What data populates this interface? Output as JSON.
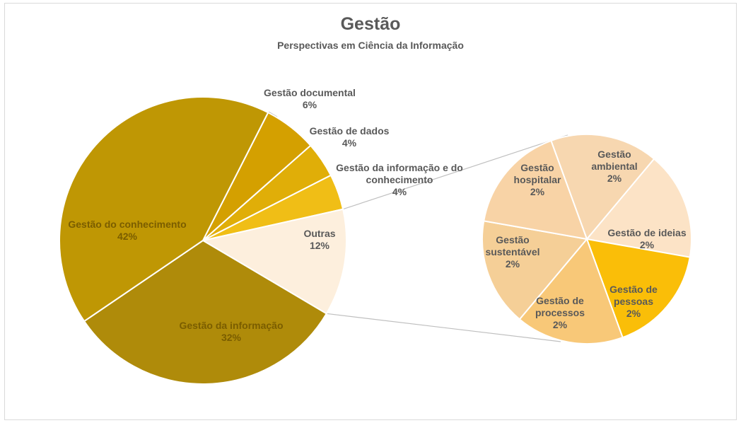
{
  "chart_data": {
    "type": "pie",
    "title": "Gestão",
    "subtitle": "Perspectivas em Ciência da Informação",
    "main_pie": [
      {
        "label": "Gestão documental",
        "value": 6,
        "display": "6%",
        "color": "#D4A000"
      },
      {
        "label": "Gestão de dados",
        "value": 4,
        "display": "4%",
        "color": "#E0AE08"
      },
      {
        "label": "Gestão da informação e do conhecimento",
        "value": 4,
        "display": "4%",
        "color": "#F0BE16"
      },
      {
        "label": "Outras",
        "value": 12,
        "display": "12%",
        "color": "#FDEFDD"
      },
      {
        "label": "Gestão da informação",
        "value": 32,
        "display": "32%",
        "color": "#AF8B0A"
      },
      {
        "label": "Gestão do conhecimento",
        "value": 42,
        "display": "42%",
        "color": "#BF9704"
      }
    ],
    "secondary_pie": [
      {
        "label": "Gestão ambiental",
        "value": 2,
        "display": "2%",
        "color": "#F7D7B0"
      },
      {
        "label": "Gestão de ideias",
        "value": 2,
        "display": "2%",
        "color": "#FCE3C6"
      },
      {
        "label": "Gestão de pessoas",
        "value": 2,
        "display": "2%",
        "color": "#FABE08"
      },
      {
        "label": "Gestão de processos",
        "value": 2,
        "display": "2%",
        "color": "#F8C878"
      },
      {
        "label": "Gestão sustentável",
        "value": 2,
        "display": "2%",
        "color": "#F5CF97"
      },
      {
        "label": "Gestão hospitalar",
        "value": 2,
        "display": "2%",
        "color": "#F8D3A6"
      }
    ],
    "legend": "none"
  }
}
